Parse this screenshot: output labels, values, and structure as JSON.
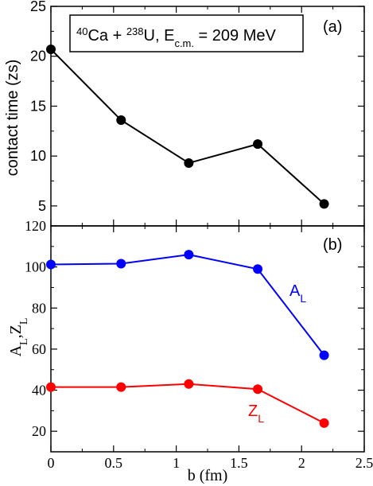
{
  "chart_data": [
    {
      "type": "line",
      "panel": "(a)",
      "ylabel": "contact time (zs)",
      "annotation": {
        "parts": [
          "40",
          "Ca + ",
          "238",
          "U, E",
          "c.m.",
          " = 209 MeV"
        ]
      },
      "xlim": [
        0,
        2.5
      ],
      "ylim": [
        3,
        25
      ],
      "yticks": [
        5,
        10,
        15,
        20,
        25
      ],
      "grid": false,
      "series": [
        {
          "color": "#000000",
          "x": [
            0.0,
            0.56,
            1.1,
            1.65,
            2.18
          ],
          "y": [
            20.7,
            13.6,
            9.3,
            11.2,
            5.2
          ]
        }
      ]
    },
    {
      "type": "line",
      "panel": "(b)",
      "ylabel": {
        "a": "A",
        "sub1": "L",
        "comma": ",",
        "z": "Z",
        "sub2": "L"
      },
      "xlabel": "b (fm)",
      "xlim": [
        0,
        2.5
      ],
      "ylim": [
        10,
        120
      ],
      "xticks": [
        "0",
        "0.5",
        "1",
        "1.5",
        "2",
        "2.5"
      ],
      "yticks": [
        20,
        40,
        60,
        80,
        100,
        120
      ],
      "grid": false,
      "series": [
        {
          "name": {
            "base": "A",
            "sub": "L"
          },
          "color": "#0000ff",
          "x": [
            0.0,
            0.56,
            1.1,
            1.65,
            2.18
          ],
          "y": [
            101.2,
            101.6,
            106.0,
            99.0,
            57.0
          ]
        },
        {
          "name": {
            "base": "Z",
            "sub": "L"
          },
          "color": "#ff0000",
          "x": [
            0.0,
            0.56,
            1.1,
            1.65,
            2.18
          ],
          "y": [
            41.5,
            41.5,
            43.0,
            40.5,
            24.0
          ]
        }
      ]
    }
  ]
}
